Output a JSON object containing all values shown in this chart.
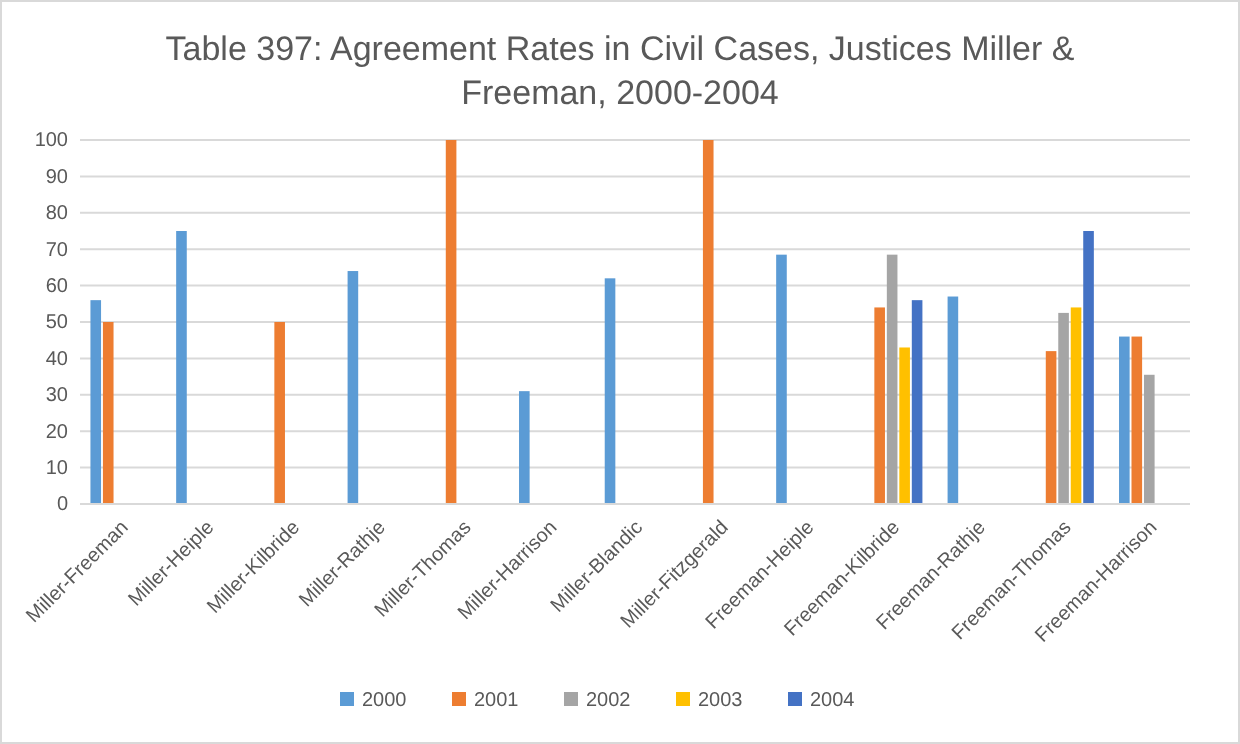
{
  "chart_data": {
    "type": "bar",
    "title": "Table 397: Agreement Rates in Civil Cases, Justices Miller & Freeman, 2000-2004",
    "categories": [
      "Miller-Freeman",
      "Miller-Heiple",
      "Miller-Kilbride",
      "Miller-Rathje",
      "Miller-Thomas",
      "Miller-Harrison",
      "Miller-Blandic",
      "Miller-Fitzgerald",
      "Freeman-Heiple",
      "Freeman-Kilbride",
      "Freeman-Rathje",
      "Freeman-Thomas",
      "Freeman-Harrison"
    ],
    "series": [
      {
        "name": "2000",
        "color": "#5b9bd5",
        "values": [
          56,
          75,
          null,
          64,
          null,
          31,
          62,
          null,
          68.5,
          null,
          57,
          null,
          46
        ]
      },
      {
        "name": "2001",
        "color": "#ed7d31",
        "values": [
          50,
          null,
          50,
          null,
          100,
          null,
          null,
          100,
          null,
          54,
          null,
          42,
          46
        ]
      },
      {
        "name": "2002",
        "color": "#a5a5a5",
        "values": [
          null,
          null,
          null,
          null,
          null,
          null,
          null,
          null,
          null,
          68.5,
          null,
          52.5,
          35.5
        ]
      },
      {
        "name": "2003",
        "color": "#ffc000",
        "values": [
          null,
          null,
          null,
          null,
          null,
          null,
          null,
          null,
          null,
          43,
          null,
          54,
          null
        ]
      },
      {
        "name": "2004",
        "color": "#4472c4",
        "values": [
          null,
          null,
          null,
          null,
          null,
          null,
          null,
          null,
          null,
          56,
          null,
          75,
          null
        ]
      }
    ],
    "ylim": [
      0,
      100
    ],
    "yticks": [
      0,
      10,
      20,
      30,
      40,
      50,
      60,
      70,
      80,
      90,
      100
    ],
    "grid": "y",
    "legend": "bottom"
  }
}
